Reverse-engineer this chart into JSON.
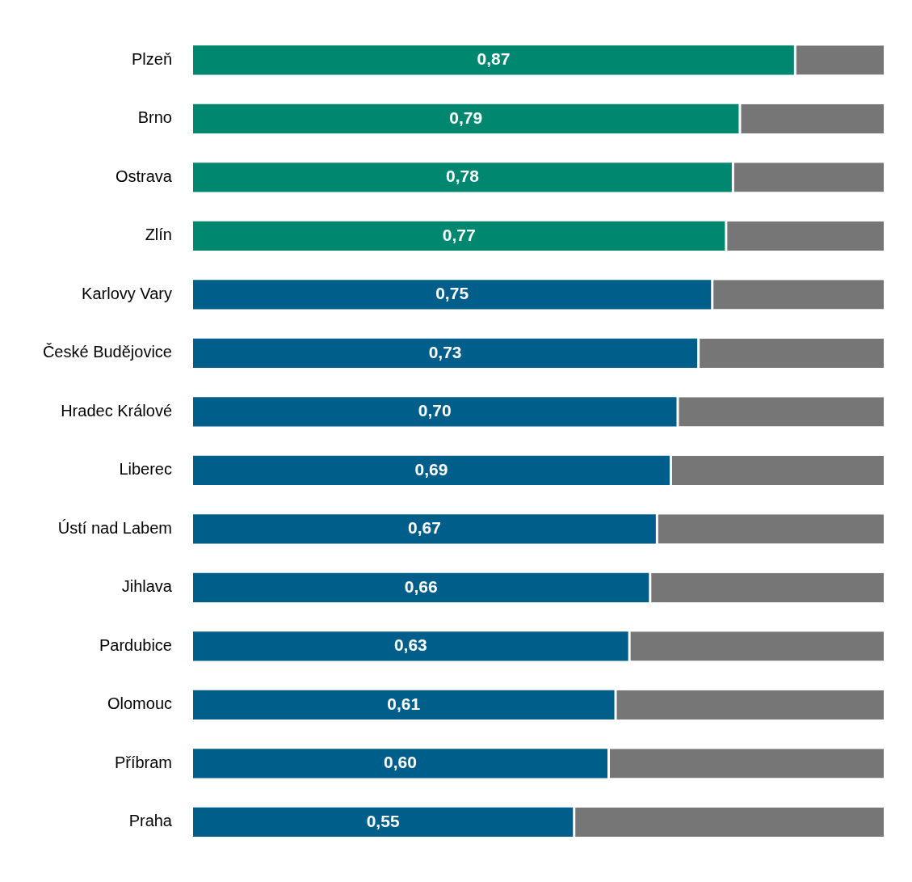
{
  "chart_data": {
    "type": "bar",
    "orientation": "horizontal",
    "stacked": true,
    "xlim": [
      0,
      1
    ],
    "tick_labels": "y",
    "categories": [
      "Plzeň",
      "Brno",
      "Ostrava",
      "Zlín",
      "Karlovy Vary",
      "České Budějovice",
      "Hradec Králové",
      "Liberec",
      "Ústí nad Labem",
      "Jihlava",
      "Pardubice",
      "Olomouc",
      "Příbram",
      "Praha"
    ],
    "series": [
      {
        "colors": [
          "#00876f",
          "#00876f",
          "#00876f",
          "#00876f",
          "#005e8a",
          "#005e8a",
          "#005e8a",
          "#005e8a",
          "#005e8a",
          "#005e8a",
          "#005e8a",
          "#005e8a",
          "#005e8a",
          "#005e8a"
        ],
        "values": [
          0.87,
          0.79,
          0.78,
          0.77,
          0.75,
          0.73,
          0.7,
          0.69,
          0.67,
          0.66,
          0.63,
          0.61,
          0.6,
          0.55
        ],
        "value_labels": [
          "0,87",
          "0,79",
          "0,78",
          "0,77",
          "0,75",
          "0,73",
          "0,70",
          "0,69",
          "0,67",
          "0,66",
          "0,63",
          "0,61",
          "0,60",
          "0,55"
        ]
      },
      {
        "color": "#767676",
        "values": [
          0.13,
          0.21,
          0.22,
          0.23,
          0.25,
          0.27,
          0.3,
          0.31,
          0.33,
          0.34,
          0.37,
          0.39,
          0.4,
          0.45
        ]
      }
    ]
  }
}
